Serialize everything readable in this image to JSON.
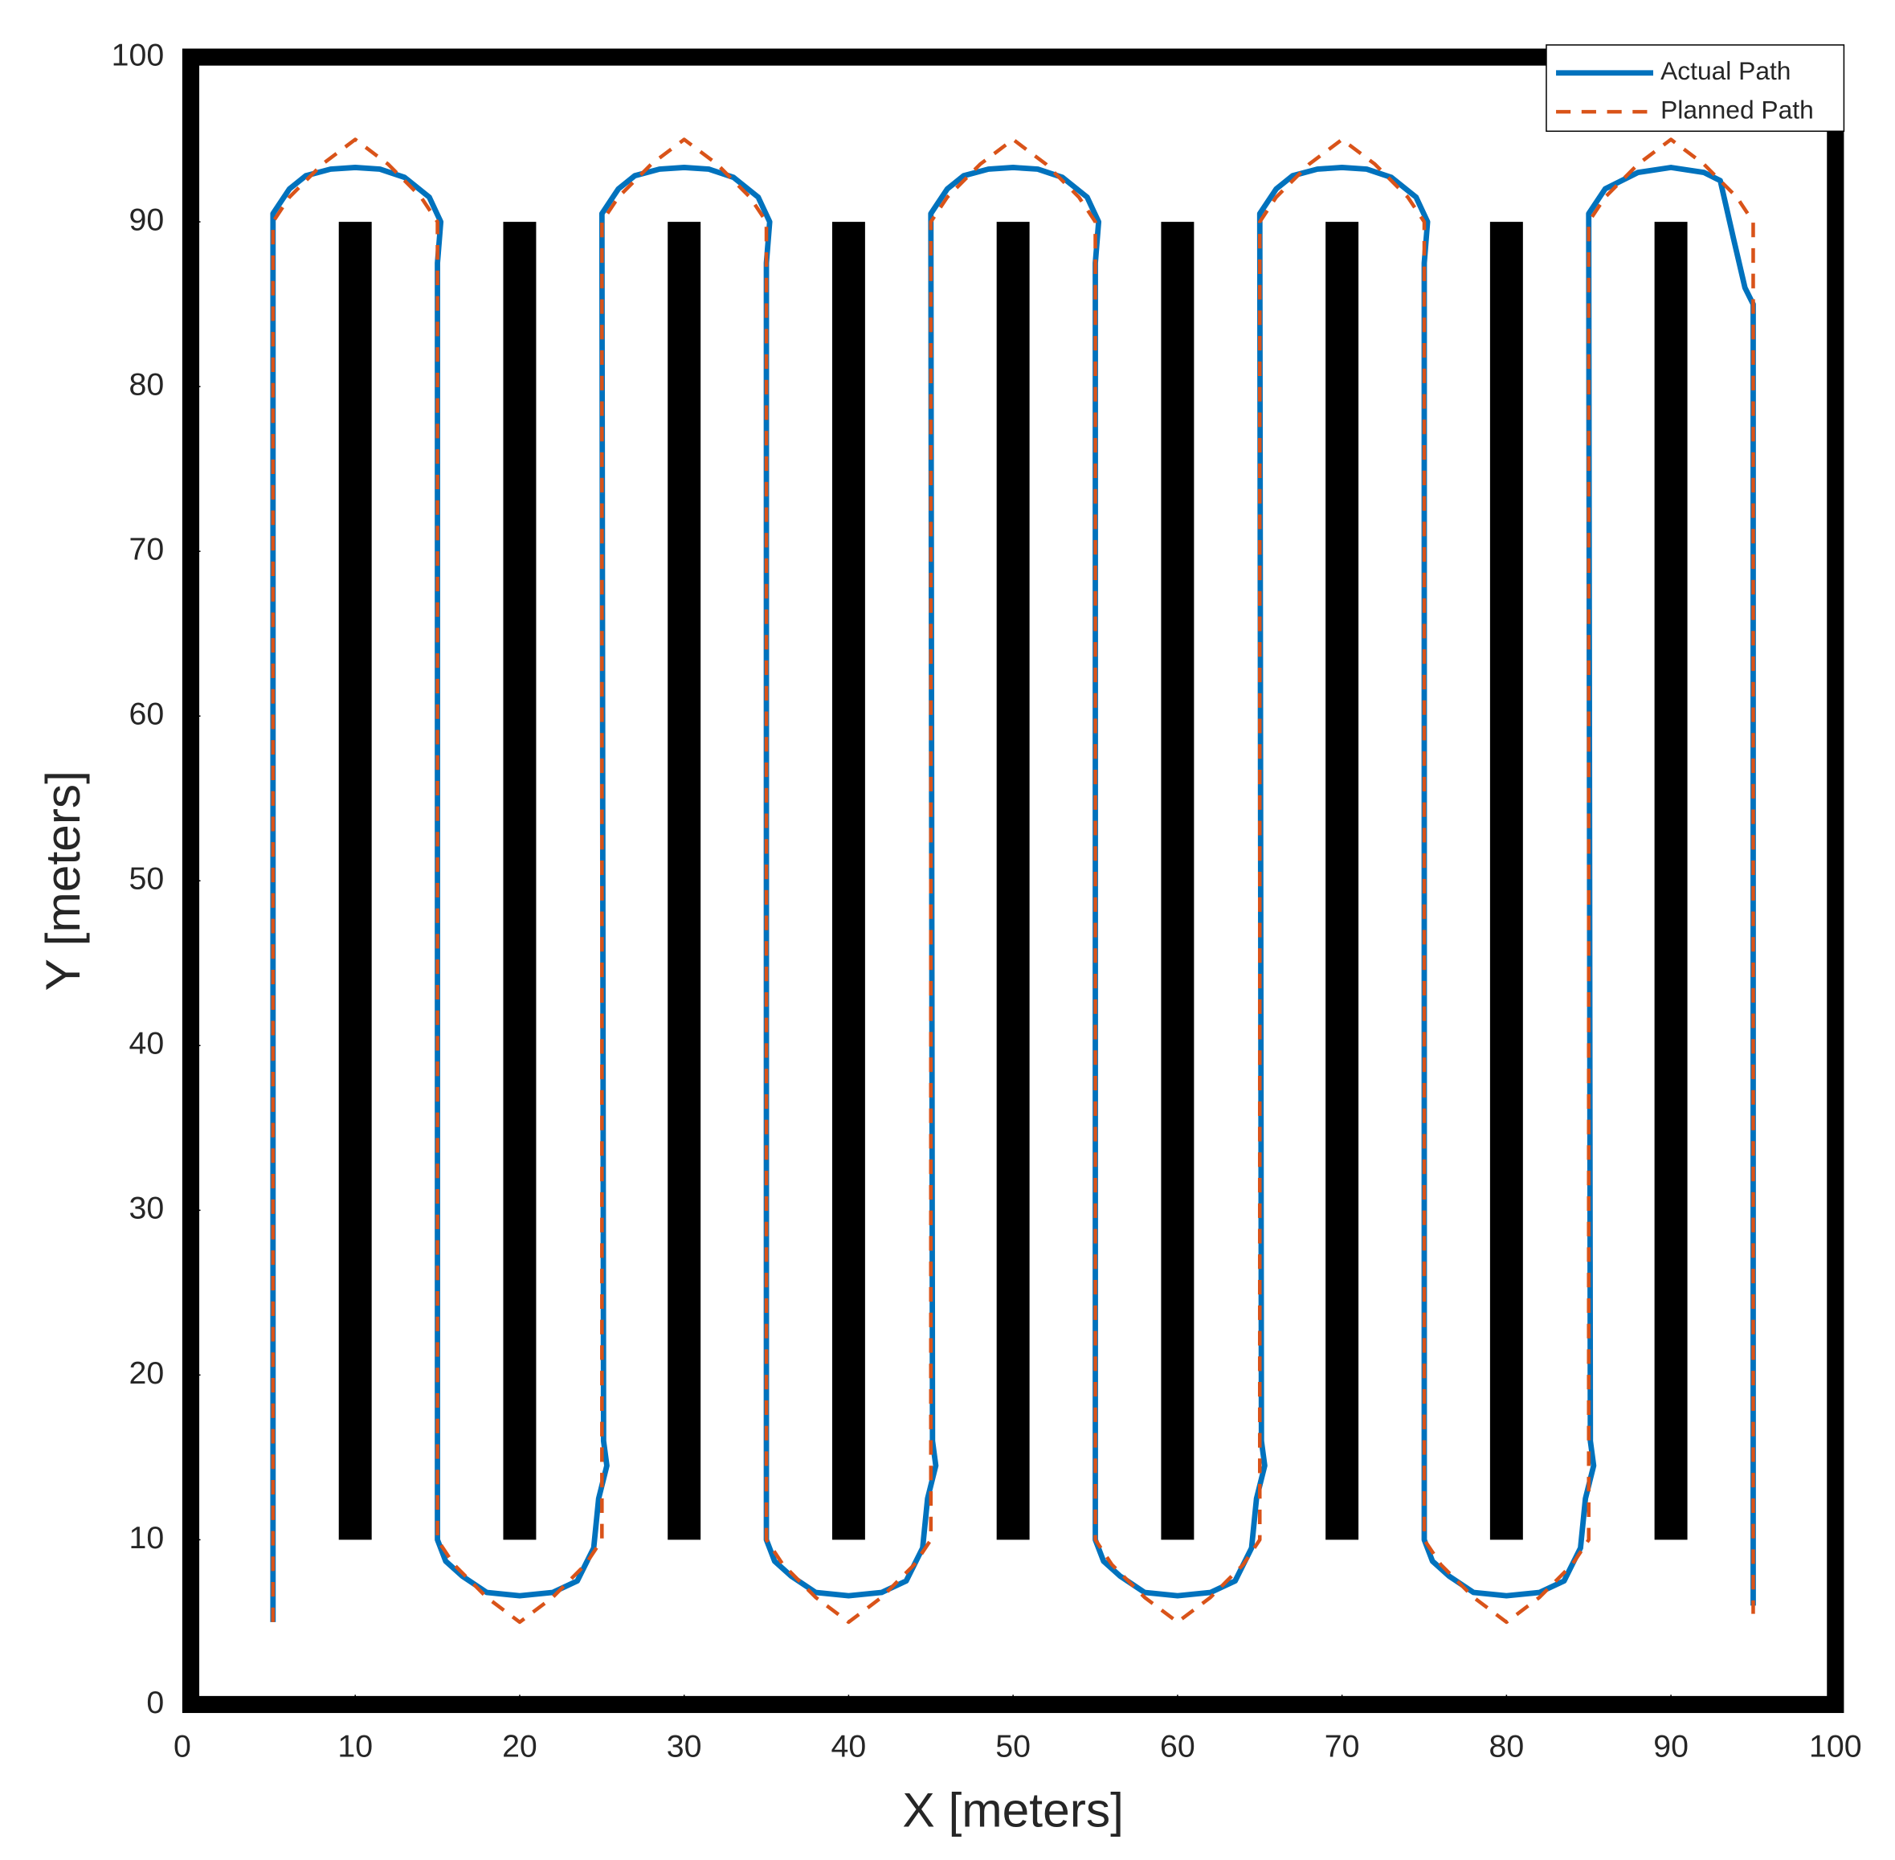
{
  "chart_data": {
    "type": "line",
    "xlabel": "X [meters]",
    "ylabel": "Y [meters]",
    "xlim": [
      0,
      100
    ],
    "ylim": [
      0,
      100
    ],
    "xticks": [
      0,
      10,
      20,
      30,
      40,
      50,
      60,
      70,
      80,
      90,
      100
    ],
    "yticks": [
      0,
      10,
      20,
      30,
      40,
      50,
      60,
      70,
      80,
      90,
      100
    ],
    "legend": "top-right",
    "obstacles": {
      "x": [
        10,
        20,
        30,
        40,
        50,
        60,
        70,
        80,
        90
      ],
      "width": 2,
      "y_range": [
        10,
        90
      ],
      "color": "#000000"
    },
    "series": [
      {
        "name": "Actual Path",
        "color": "#0072BD",
        "line_style": "solid",
        "x": [
          5,
          5,
          6,
          7,
          8.5,
          10,
          11.5,
          13,
          14.5,
          15.2,
          15,
          15,
          15.5,
          16.5,
          18,
          20,
          22,
          23.5,
          24.5,
          24.8,
          25.3,
          25.1,
          25,
          26,
          27,
          28.5,
          30,
          31.5,
          33,
          34.5,
          35.2,
          35,
          35,
          35.5,
          36.5,
          38,
          40,
          42,
          43.5,
          44.5,
          44.8,
          45.3,
          45.1,
          45,
          46,
          47,
          48.5,
          50,
          51.5,
          53,
          54.5,
          55.2,
          55,
          55,
          55.5,
          56.5,
          58,
          60,
          62,
          63.5,
          64.5,
          64.8,
          65.3,
          65.1,
          65,
          66,
          67,
          68.5,
          70,
          71.5,
          73,
          74.5,
          75.2,
          75,
          75,
          75.5,
          76.5,
          78,
          80,
          82,
          83.5,
          84.5,
          84.8,
          85.3,
          85.1,
          85,
          86,
          88,
          90,
          92,
          93,
          93.8,
          94.5,
          95,
          95,
          95
        ],
        "values": [
          5,
          90.5,
          92,
          92.8,
          93.2,
          93.3,
          93.2,
          92.7,
          91.5,
          90,
          87.5,
          10,
          8.7,
          7.8,
          6.8,
          6.6,
          6.8,
          7.5,
          9.5,
          12.5,
          14.5,
          16,
          90.5,
          92,
          92.8,
          93.2,
          93.3,
          93.2,
          92.7,
          91.5,
          90,
          87.5,
          10,
          8.7,
          7.8,
          6.8,
          6.6,
          6.8,
          7.5,
          9.5,
          12.5,
          14.5,
          16,
          90.5,
          92,
          92.8,
          93.2,
          93.3,
          93.2,
          92.7,
          91.5,
          90,
          87.5,
          10,
          8.7,
          7.8,
          6.8,
          6.6,
          6.8,
          7.5,
          9.5,
          12.5,
          14.5,
          16,
          90.5,
          92,
          92.8,
          93.2,
          93.3,
          93.2,
          92.7,
          91.5,
          90,
          87.5,
          10,
          8.7,
          7.8,
          6.8,
          6.6,
          6.8,
          7.5,
          9.5,
          12.5,
          14.5,
          16,
          90.5,
          92,
          93,
          93.3,
          93,
          92.5,
          89,
          86,
          85,
          82,
          6
        ]
      },
      {
        "name": "Planned Path",
        "color": "#D95319",
        "line_style": "dashed",
        "x": [
          5,
          5,
          6,
          8,
          10,
          12,
          14,
          15,
          15,
          16,
          18,
          20,
          22,
          24,
          25,
          25,
          26,
          28,
          30,
          32,
          34,
          35,
          35,
          36,
          38,
          40,
          42,
          44,
          45,
          45,
          46,
          48,
          50,
          52,
          54,
          55,
          55,
          56,
          58,
          60,
          62,
          64,
          65,
          65,
          66,
          68,
          70,
          72,
          74,
          75,
          75,
          76,
          78,
          80,
          82,
          84,
          85,
          85,
          86,
          88,
          90,
          92,
          94,
          95,
          95
        ],
        "values": [
          5,
          90,
          91.5,
          93.5,
          95,
          93.5,
          91.5,
          90,
          10,
          8.5,
          6.5,
          5,
          6.5,
          8.5,
          10,
          90,
          91.5,
          93.5,
          95,
          93.5,
          91.5,
          90,
          10,
          8.5,
          6.5,
          5,
          6.5,
          8.5,
          10,
          90,
          91.5,
          93.5,
          95,
          93.5,
          91.5,
          90,
          10,
          8.5,
          6.5,
          5,
          6.5,
          8.5,
          10,
          90,
          91.5,
          93.5,
          95,
          93.5,
          91.5,
          90,
          10,
          8.5,
          6.5,
          5,
          6.5,
          8.5,
          10,
          90,
          91.5,
          93.5,
          95,
          93.5,
          91.5,
          90,
          5.5
        ]
      }
    ]
  }
}
